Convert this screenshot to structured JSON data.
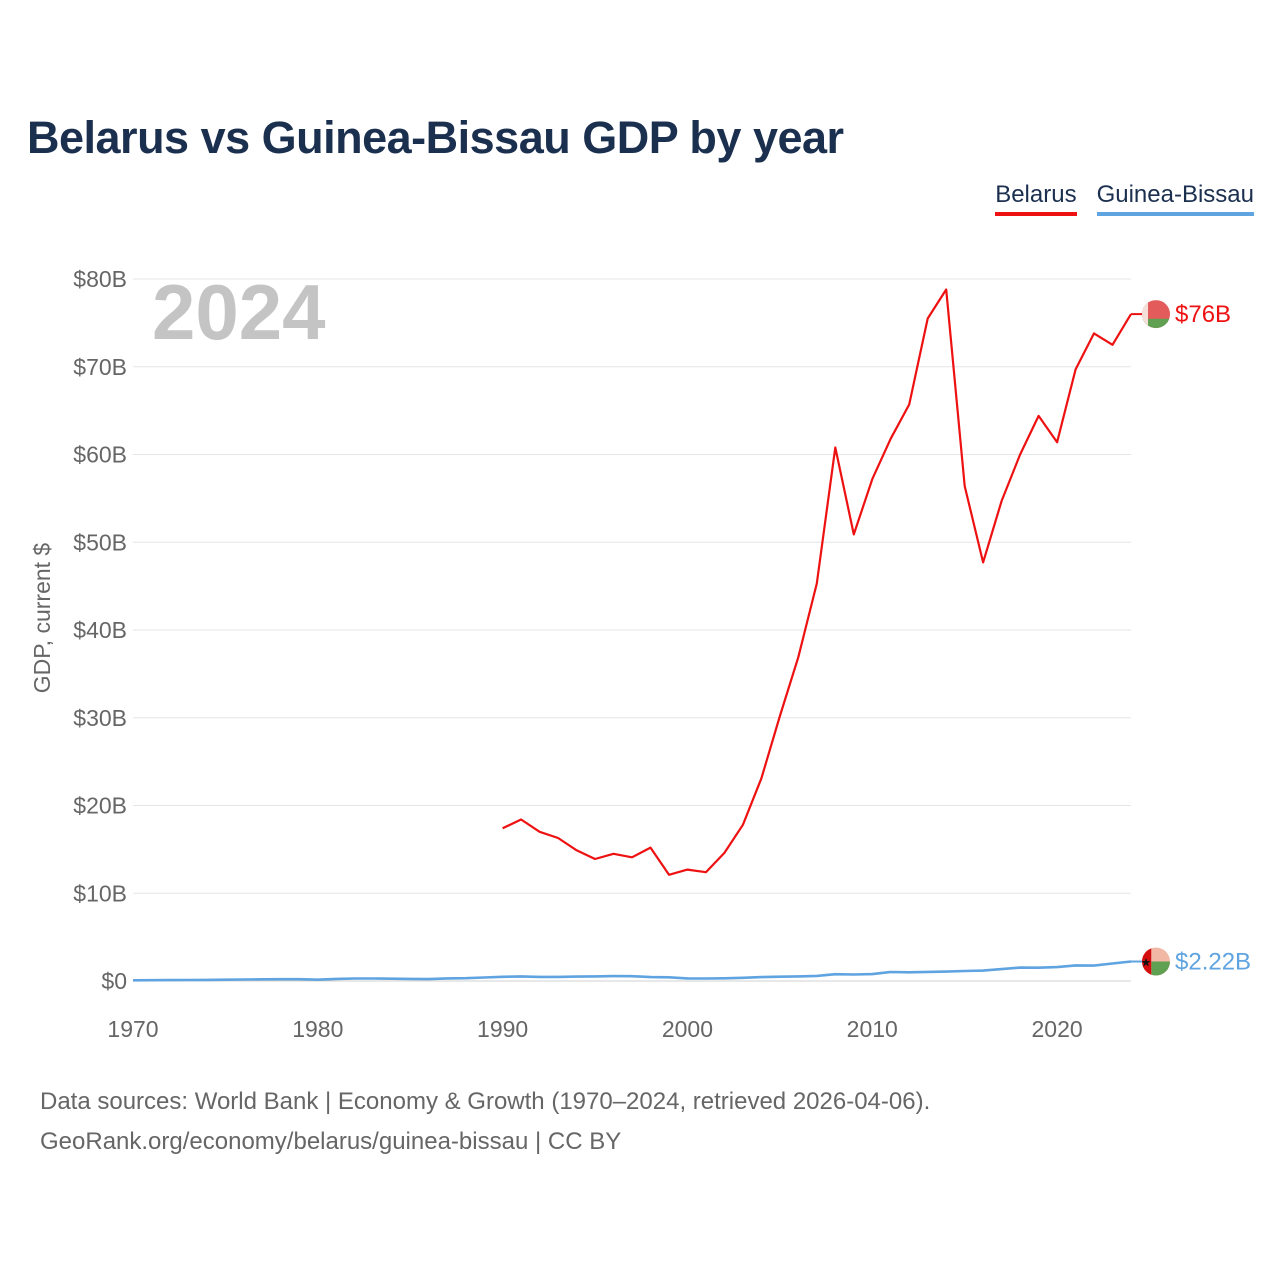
{
  "title": "Belarus vs Guinea-Bissau GDP by year",
  "footer": {
    "line1": "Data sources: World Bank | Economy & Growth (1970–2024, retrieved 2026-04-06).",
    "line2": "GeoRank.org/economy/belarus/guinea-bissau | CC BY"
  },
  "chart_data": {
    "type": "line",
    "title": "Belarus vs Guinea-Bissau GDP by year",
    "year_label": "2024",
    "xlabel": "",
    "ylabel": "GDP, current $",
    "xlim": [
      1970,
      2024
    ],
    "ylim": [
      0,
      80
    ],
    "x_ticks": [
      1970,
      1980,
      1990,
      2000,
      2010,
      2020
    ],
    "y_ticks": [
      0,
      10,
      20,
      30,
      40,
      50,
      60,
      70,
      80
    ],
    "y_tick_labels": [
      "$0",
      "$10B",
      "$20B",
      "$30B",
      "$40B",
      "$50B",
      "$60B",
      "$70B",
      "$80B"
    ],
    "legend_position": "top-right",
    "series": [
      {
        "name": "Belarus",
        "color": "#ee1111",
        "end_label": "$76B",
        "x": [
          1990,
          1991,
          1992,
          1993,
          1994,
          1995,
          1996,
          1997,
          1998,
          1999,
          2000,
          2001,
          2002,
          2003,
          2004,
          2005,
          2006,
          2007,
          2008,
          2009,
          2010,
          2011,
          2012,
          2013,
          2014,
          2015,
          2016,
          2017,
          2018,
          2019,
          2020,
          2021,
          2022,
          2023,
          2024
        ],
        "values": [
          17.4,
          18.4,
          17.0,
          16.3,
          14.9,
          13.9,
          14.5,
          14.1,
          15.2,
          12.1,
          12.7,
          12.4,
          14.6,
          17.8,
          23.1,
          30.2,
          36.9,
          45.3,
          60.8,
          50.9,
          57.2,
          61.8,
          65.7,
          75.5,
          78.8,
          56.4,
          47.7,
          54.7,
          60.0,
          64.4,
          61.4,
          69.7,
          73.8,
          72.5,
          76.0
        ]
      },
      {
        "name": "Guinea-Bissau",
        "color": "#5fa4e0",
        "end_label": "$2.22B",
        "x": [
          1970,
          1971,
          1972,
          1973,
          1974,
          1975,
          1976,
          1977,
          1978,
          1979,
          1980,
          1981,
          1982,
          1983,
          1984,
          1985,
          1986,
          1987,
          1988,
          1989,
          1990,
          1991,
          1992,
          1993,
          1994,
          1995,
          1996,
          1997,
          1998,
          1999,
          2000,
          2001,
          2002,
          2003,
          2004,
          2005,
          2006,
          2007,
          2008,
          2009,
          2010,
          2011,
          2012,
          2013,
          2014,
          2015,
          2016,
          2017,
          2018,
          2019,
          2020,
          2021,
          2022,
          2023,
          2024
        ],
        "values": [
          0.08,
          0.09,
          0.1,
          0.11,
          0.13,
          0.15,
          0.17,
          0.19,
          0.21,
          0.2,
          0.15,
          0.24,
          0.28,
          0.29,
          0.26,
          0.24,
          0.22,
          0.3,
          0.32,
          0.4,
          0.48,
          0.52,
          0.47,
          0.47,
          0.5,
          0.52,
          0.56,
          0.55,
          0.45,
          0.42,
          0.3,
          0.28,
          0.31,
          0.36,
          0.45,
          0.49,
          0.52,
          0.58,
          0.78,
          0.74,
          0.79,
          1.02,
          0.99,
          1.04,
          1.07,
          1.14,
          1.18,
          1.36,
          1.53,
          1.51,
          1.58,
          1.78,
          1.76,
          2.0,
          2.22
        ]
      }
    ]
  }
}
